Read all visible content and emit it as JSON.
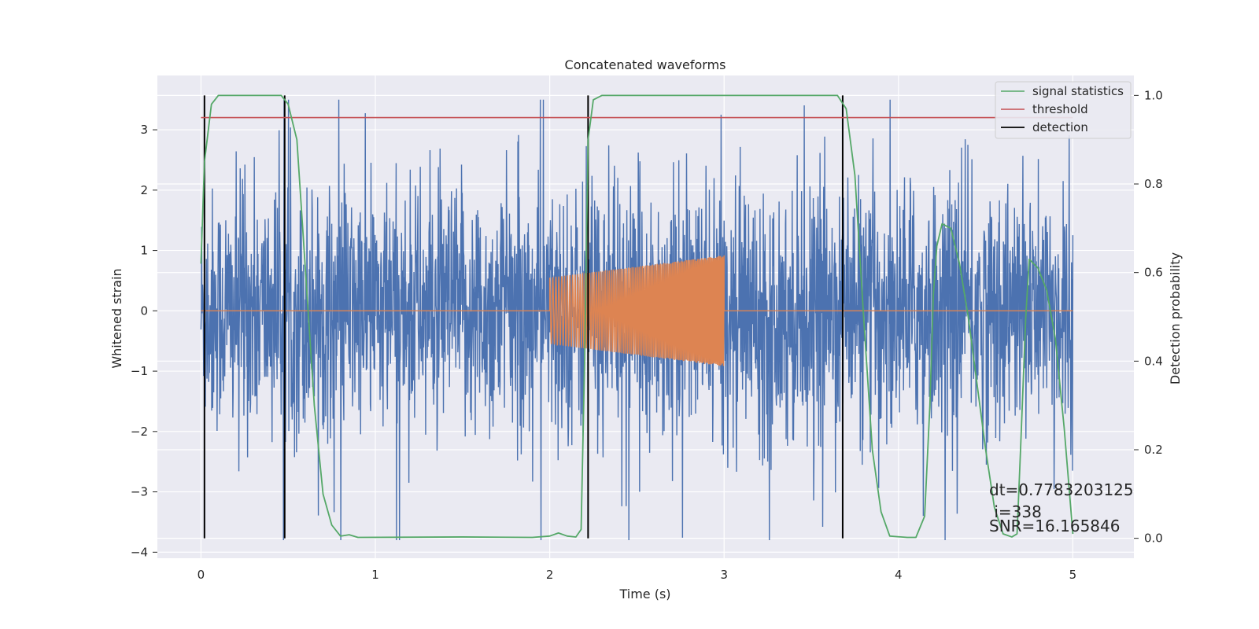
{
  "chart_data": {
    "type": "line",
    "title": "Concatenated waveforms",
    "xlabel": "Time (s)",
    "ylabel": "Whitened strain",
    "ylabel_right": "Detection probability",
    "xlim": [
      -0.25,
      5.35
    ],
    "ylim": [
      -4.1,
      3.9
    ],
    "ylim_right": [
      -0.045,
      1.045
    ],
    "x_ticks": [
      0,
      1,
      2,
      3,
      4,
      5
    ],
    "y_ticks": [
      -4,
      -3,
      -2,
      -1,
      0,
      1,
      2,
      3
    ],
    "y_ticks_right": [
      0.0,
      0.2,
      0.4,
      0.6,
      0.8,
      1.0
    ],
    "x_tick_labels": [
      "0",
      "1",
      "2",
      "3",
      "4",
      "5"
    ],
    "y_tick_labels": [
      "−4",
      "−3",
      "−2",
      "−1",
      "0",
      "1",
      "2",
      "3"
    ],
    "y_tick_labels_right": [
      "0.0",
      "0.2",
      "0.4",
      "0.6",
      "0.8",
      "1.0"
    ],
    "grid": true,
    "background": "#eaeaf2",
    "legend_position": "top-right",
    "colors": {
      "noise": "#4c72b0",
      "injection": "#dd8452",
      "signal_statistics": "#55a868",
      "threshold": "#c44e52",
      "detection": "#000000"
    },
    "series": [
      {
        "name": "",
        "axis": "left",
        "kind": "noisy-strain",
        "x_range": [
          0,
          5
        ],
        "bulk_band": [
          -0.75,
          0.75
        ],
        "max": 3.5,
        "min": -3.8
      },
      {
        "name": "",
        "axis": "left",
        "kind": "injected-chirp",
        "x": [
          0,
          2.0,
          2.0,
          3.0,
          3.0,
          5.0
        ],
        "y": [
          0,
          0,
          0.55,
          0.92,
          0,
          0
        ],
        "envelope_segment": {
          "x_start": 2.0,
          "x_end": 3.0,
          "amp_start": 0.55,
          "amp_end": 0.92
        }
      },
      {
        "name": "signal statistics",
        "axis": "right",
        "x": [
          0.0,
          0.02,
          0.06,
          0.1,
          0.15,
          0.4,
          0.46,
          0.5,
          0.55,
          0.6,
          0.65,
          0.7,
          0.75,
          0.8,
          0.85,
          0.9,
          1.5,
          1.9,
          2.0,
          2.05,
          2.1,
          2.15,
          2.18,
          2.2,
          2.22,
          2.25,
          2.3,
          2.4,
          3.0,
          3.6,
          3.65,
          3.7,
          3.75,
          3.8,
          3.85,
          3.9,
          3.95,
          4.05,
          4.1,
          4.15,
          4.18,
          4.2,
          4.22,
          4.25,
          4.3,
          4.35,
          4.4,
          4.45,
          4.5,
          4.55,
          4.6,
          4.65,
          4.68,
          4.7,
          4.73,
          4.75,
          4.8,
          4.85,
          4.9,
          4.95,
          5.0
        ],
        "y": [
          0.62,
          0.85,
          0.98,
          1.0,
          1.0,
          1.0,
          1.0,
          0.98,
          0.9,
          0.6,
          0.3,
          0.1,
          0.03,
          0.005,
          0.008,
          0.002,
          0.003,
          0.002,
          0.005,
          0.012,
          0.005,
          0.003,
          0.02,
          0.4,
          0.9,
          0.99,
          1.0,
          1.0,
          1.0,
          1.0,
          1.0,
          0.97,
          0.82,
          0.5,
          0.2,
          0.06,
          0.005,
          0.002,
          0.002,
          0.05,
          0.3,
          0.55,
          0.66,
          0.71,
          0.7,
          0.62,
          0.5,
          0.35,
          0.2,
          0.07,
          0.01,
          0.003,
          0.01,
          0.2,
          0.5,
          0.63,
          0.61,
          0.56,
          0.45,
          0.25,
          0.01
        ]
      },
      {
        "name": "threshold",
        "axis": "right",
        "x": [
          0,
          5
        ],
        "y": [
          0.95,
          0.95
        ]
      },
      {
        "name": "detection",
        "axis": "right",
        "x": [
          0.02,
          0.48,
          2.22,
          3.68
        ],
        "y_from": 0.0,
        "y_to": 1.0
      }
    ],
    "annotation": {
      "line1": "dt=0.7783203125",
      "line2": " i=338",
      "line3": "SNR=16.165846",
      "x": 4.5,
      "y_lines": [
        -2.9,
        -3.25,
        -3.55
      ]
    }
  }
}
